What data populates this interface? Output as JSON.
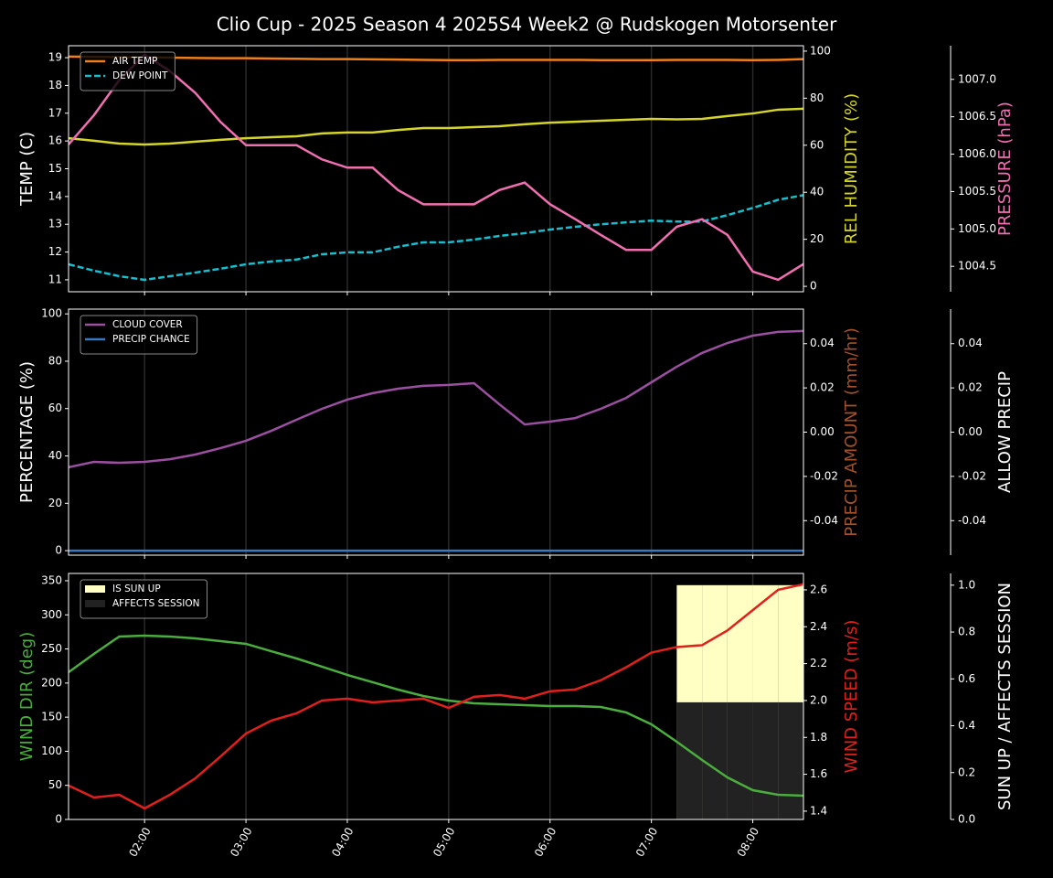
{
  "title": "Clio Cup - 2025 Season 4 2025S4 Week2 @ Rudskogen Motorsenter",
  "chart_data": [
    {
      "type": "line",
      "x": [
        "01:15",
        "01:30",
        "01:45",
        "02:00",
        "02:15",
        "02:30",
        "02:45",
        "03:00",
        "03:15",
        "03:30",
        "03:45",
        "04:00",
        "04:15",
        "04:30",
        "04:45",
        "05:00",
        "05:15",
        "05:30",
        "05:45",
        "06:00",
        "06:15",
        "06:30",
        "06:45",
        "07:00",
        "07:15",
        "07:30",
        "07:45",
        "08:00",
        "08:15",
        "08:30"
      ],
      "xlim": [
        "01:15",
        "08:30"
      ],
      "xticks": [
        "02:00",
        "03:00",
        "04:00",
        "05:00",
        "06:00",
        "07:00",
        "08:00"
      ],
      "ylabel": "TEMP (C)",
      "ylabel_color": "#ffffff",
      "ylim": [
        10.57,
        19.43
      ],
      "yticks": [
        11,
        12,
        13,
        14,
        15,
        16,
        17,
        18,
        19
      ],
      "y2label": "REL HUMIDITY (%)",
      "y2label_color": "#d4d42a",
      "y2lim": [
        -2.3,
        102.3
      ],
      "y2ticks": [
        0,
        20,
        40,
        60,
        80,
        100
      ],
      "y3label": "PRESSURE (hPa)",
      "y3label_color": "#f06fb0",
      "y3lim": [
        1004.16,
        1007.45
      ],
      "y3ticks": [
        1004.5,
        {
          "value": 1005,
          "label": "1005.0"
        },
        1005.5,
        {
          "value": 1006,
          "label": "1006.0"
        },
        1006.5,
        {
          "value": 1007,
          "label": "1007.0"
        }
      ],
      "grid": true,
      "legend": "upper left",
      "series": [
        {
          "name": "AIR TEMP",
          "color": "#f07f1a",
          "values": [
            19.04,
            19.03,
            19.02,
            19.01,
            19.0,
            18.99,
            18.98,
            18.98,
            18.97,
            18.96,
            18.95,
            18.95,
            18.94,
            18.93,
            18.92,
            18.91,
            18.91,
            18.92,
            18.92,
            18.92,
            18.92,
            18.91,
            18.91,
            18.91,
            18.92,
            18.92,
            18.92,
            18.91,
            18.92,
            18.95
          ]
        },
        {
          "name": "DEW POINT",
          "color": "#17becf",
          "dash": true,
          "values": [
            11.56,
            11.33,
            11.13,
            11.0,
            11.13,
            11.26,
            11.4,
            11.56,
            11.66,
            11.73,
            11.92,
            11.99,
            11.99,
            12.19,
            12.35,
            12.35,
            12.45,
            12.58,
            12.68,
            12.81,
            12.91,
            13.0,
            13.07,
            13.13,
            13.1,
            13.1,
            13.33,
            13.59,
            13.88,
            14.05
          ]
        },
        {
          "color": "#d4d42a",
          "axis": "y2",
          "values": [
            63.0,
            61.9,
            60.7,
            60.3,
            60.7,
            61.5,
            62.3,
            63.0,
            63.4,
            63.8,
            65.0,
            65.4,
            65.4,
            66.5,
            67.3,
            67.3,
            67.7,
            68.1,
            68.9,
            69.6,
            70.0,
            70.4,
            70.8,
            71.2,
            71.0,
            71.2,
            72.4,
            73.5,
            75.1,
            75.5
          ]
        },
        {
          "color": "#f06fb0",
          "axis": "y3",
          "values": [
            1006.13,
            1006.52,
            1006.99,
            1007.33,
            1007.11,
            1006.82,
            1006.43,
            1006.12,
            1006.12,
            1006.12,
            1005.93,
            1005.82,
            1005.82,
            1005.52,
            1005.33,
            1005.33,
            1005.33,
            1005.52,
            1005.62,
            1005.33,
            1005.13,
            1004.92,
            1004.72,
            1004.72,
            1005.03,
            1005.13,
            1004.92,
            1004.43,
            1004.32,
            1004.53
          ]
        }
      ]
    },
    {
      "type": "line",
      "x": [
        "01:15",
        "01:30",
        "01:45",
        "02:00",
        "02:15",
        "02:30",
        "02:45",
        "03:00",
        "03:15",
        "03:30",
        "03:45",
        "04:00",
        "04:15",
        "04:30",
        "04:45",
        "05:00",
        "05:15",
        "05:30",
        "05:45",
        "06:00",
        "06:15",
        "06:30",
        "06:45",
        "07:00",
        "07:15",
        "07:30",
        "07:45",
        "08:00",
        "08:15",
        "08:30"
      ],
      "xlim": [
        "01:15",
        "08:30"
      ],
      "xticks": [
        "02:00",
        "03:00",
        "04:00",
        "05:00",
        "06:00",
        "07:00",
        "08:00"
      ],
      "ylabel": "PERCENTAGE (%)",
      "ylabel_color": "#ffffff",
      "ylim": [
        -1.9,
        102
      ],
      "yticks": [
        0,
        20,
        40,
        60,
        80,
        100
      ],
      "y2label": "PRECIP AMOUNT (mm/hr)",
      "y2label_color": "#a0522d",
      "y2lim": [
        -0.0556,
        0.0556
      ],
      "y2ticks": [
        -0.04,
        -0.02,
        {
          "value": 0,
          "label": "0.00"
        },
        0.02,
        0.04
      ],
      "y3label": "ALLOW PRECIP",
      "y3label_color": "#ffffff",
      "y3lim": [
        -0.0556,
        0.0556
      ],
      "y3ticks": [
        -0.04,
        -0.02,
        {
          "value": 0,
          "label": "0.00"
        },
        0.02,
        0.04
      ],
      "grid": true,
      "legend": "upper left",
      "series": [
        {
          "name": "CLOUD COVER",
          "color": "#9b4fa0",
          "values": [
            35.2,
            37.5,
            37.1,
            37.5,
            38.6,
            40.6,
            43.3,
            46.4,
            50.6,
            55.3,
            59.9,
            63.8,
            66.5,
            68.4,
            69.6,
            70.0,
            70.7,
            61.8,
            53.3,
            54.5,
            56.0,
            59.9,
            64.5,
            71.1,
            77.7,
            83.5,
            87.7,
            90.8,
            92.4,
            92.8
          ]
        },
        {
          "name": "PRECIP CHANCE",
          "color": "#3b78c0",
          "values": [
            0,
            0,
            0,
            0,
            0,
            0,
            0,
            0,
            0,
            0,
            0,
            0,
            0,
            0,
            0,
            0,
            0,
            0,
            0,
            0,
            0,
            0,
            0,
            0,
            0,
            0,
            0,
            0,
            0,
            0
          ]
        }
      ]
    },
    {
      "type": "line",
      "x": [
        "01:15",
        "01:30",
        "01:45",
        "02:00",
        "02:15",
        "02:30",
        "02:45",
        "03:00",
        "03:15",
        "03:30",
        "03:45",
        "04:00",
        "04:15",
        "04:30",
        "04:45",
        "05:00",
        "05:15",
        "05:30",
        "05:45",
        "06:00",
        "06:15",
        "06:30",
        "06:45",
        "07:00",
        "07:15",
        "07:30",
        "07:45",
        "08:00",
        "08:15",
        "08:30"
      ],
      "xlim": [
        "01:15",
        "08:30"
      ],
      "xticks": [
        "02:00",
        "03:00",
        "04:00",
        "05:00",
        "06:00",
        "07:00",
        "08:00"
      ],
      "ylabel": "WIND DIR (deg)",
      "ylabel_color": "#4aad3d",
      "ylim": [
        0,
        360.7
      ],
      "yticks": [
        0,
        50,
        100,
        150,
        200,
        250,
        300,
        350
      ],
      "y2label": "WIND SPEED (m/s)",
      "y2label_color": "#e0201c",
      "y2lim": [
        1.355,
        2.689
      ],
      "y2ticks": [
        1.4,
        1.6,
        1.8,
        {
          "value": 2,
          "label": "2.0"
        },
        2.2,
        2.4,
        2.6
      ],
      "y3label": "SUN UP / AFFECTS SESSION",
      "y3label_color": "#ffffff",
      "y3lim": [
        0,
        1.05
      ],
      "y3ticks": [
        {
          "value": 0,
          "label": "0.0"
        },
        0.2,
        0.4,
        0.6,
        0.8,
        {
          "value": 1,
          "label": "1.0"
        }
      ],
      "grid": true,
      "legend": "upper left",
      "series": [
        {
          "name": "IS SUN UP",
          "type": "bar",
          "color": "#ffffc4",
          "axis": "y3",
          "values": [
            0,
            0,
            0,
            0,
            0,
            0,
            0,
            0,
            0,
            0,
            0,
            0,
            0,
            0,
            0,
            0,
            0,
            0,
            0,
            0,
            0,
            0,
            0,
            0,
            1,
            1,
            1,
            1,
            1,
            1
          ]
        },
        {
          "name": "AFFECTS SESSION",
          "type": "bar",
          "color": "#222222",
          "axis": "y3",
          "values": [
            0,
            0,
            0,
            0,
            0,
            0,
            0,
            0,
            0,
            0,
            0,
            0,
            0,
            0,
            0,
            0,
            0,
            0,
            0,
            0,
            0,
            0,
            0,
            0,
            0.5,
            0.5,
            0.5,
            0.5,
            0.5,
            0.5
          ]
        },
        {
          "color": "#4aad3d",
          "values": [
            215.9,
            242.7,
            268.2,
            269.5,
            268.2,
            265.5,
            261.5,
            257.5,
            246.7,
            236.0,
            224.0,
            211.9,
            201.2,
            190.4,
            181.0,
            174.3,
            170.3,
            169.0,
            167.6,
            166.3,
            166.3,
            164.9,
            156.9,
            139.5,
            114.0,
            87.2,
            61.7,
            42.9,
            36.2,
            34.9
          ]
        },
        {
          "color": "#e0201c",
          "axis": "y2",
          "values": [
            1.539,
            1.474,
            1.489,
            1.415,
            1.489,
            1.578,
            1.697,
            1.821,
            1.891,
            1.931,
            2.0,
            2.01,
            1.99,
            2.0,
            2.01,
            1.96,
            2.02,
            2.03,
            2.01,
            2.05,
            2.06,
            2.11,
            2.18,
            2.26,
            2.29,
            2.3,
            2.38,
            2.49,
            2.6,
            2.63
          ]
        }
      ]
    }
  ]
}
